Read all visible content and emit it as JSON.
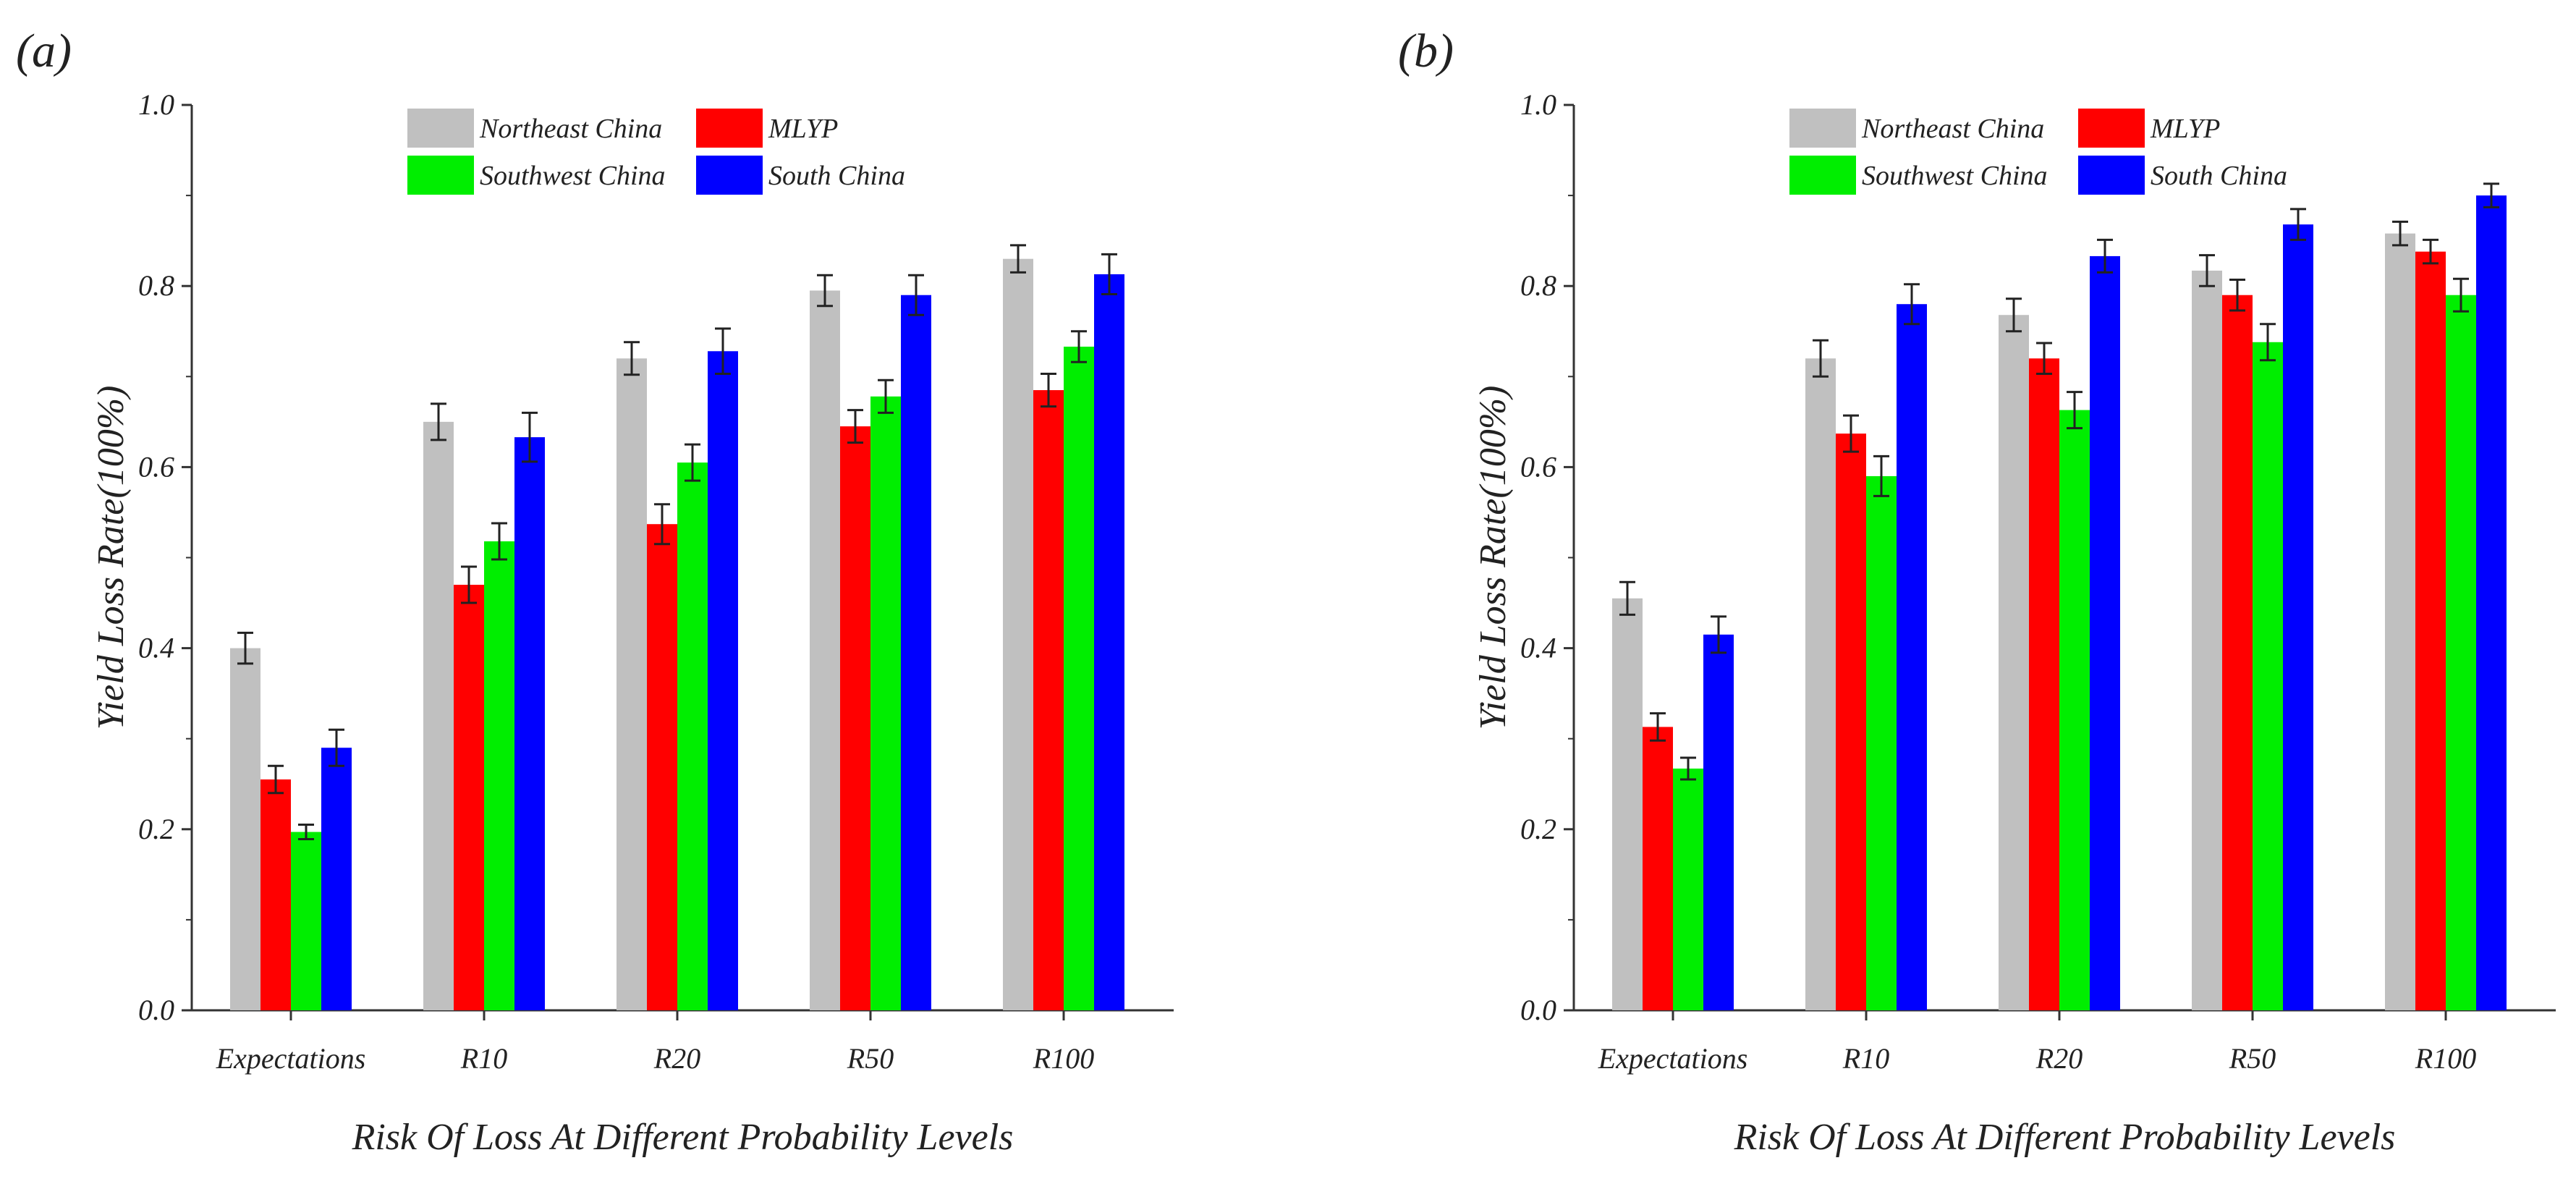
{
  "chart_data": [
    {
      "type": "bar",
      "panel_label": "(a)",
      "categories": [
        "Expectations",
        "R10",
        "R20",
        "R50",
        "R100"
      ],
      "series": [
        {
          "name": "Northeast China",
          "color": "#c0c0c0",
          "values": [
            0.4,
            0.65,
            0.72,
            0.795,
            0.83
          ],
          "errors": [
            0.017,
            0.02,
            0.018,
            0.017,
            0.015
          ]
        },
        {
          "name": "MLYP",
          "color": "#ff0000",
          "values": [
            0.255,
            0.47,
            0.537,
            0.645,
            0.685
          ],
          "errors": [
            0.015,
            0.02,
            0.022,
            0.018,
            0.018
          ]
        },
        {
          "name": "Southwest China",
          "color": "#00ee00",
          "values": [
            0.197,
            0.518,
            0.605,
            0.678,
            0.733
          ],
          "errors": [
            0.008,
            0.02,
            0.02,
            0.018,
            0.017
          ]
        },
        {
          "name": "South China",
          "color": "#0000ff",
          "values": [
            0.29,
            0.633,
            0.728,
            0.79,
            0.813
          ],
          "errors": [
            0.02,
            0.027,
            0.025,
            0.022,
            0.022
          ]
        }
      ],
      "xlabel": "Risk Of Loss At Different Probability Levels",
      "ylabel": "Yield Loss Rate(100%)",
      "ylim": [
        0,
        1.0
      ],
      "yticks": [
        "0.0",
        "0.2",
        "0.4",
        "0.6",
        "0.8",
        "1.0"
      ],
      "legend_position": "top-left"
    },
    {
      "type": "bar",
      "panel_label": "(b)",
      "categories": [
        "Expectations",
        "R10",
        "R20",
        "R50",
        "R100"
      ],
      "series": [
        {
          "name": "Northeast China",
          "color": "#c0c0c0",
          "values": [
            0.455,
            0.72,
            0.768,
            0.817,
            0.858
          ],
          "errors": [
            0.018,
            0.02,
            0.018,
            0.017,
            0.013
          ]
        },
        {
          "name": "MLYP",
          "color": "#ff0000",
          "values": [
            0.313,
            0.637,
            0.72,
            0.79,
            0.838
          ],
          "errors": [
            0.015,
            0.02,
            0.017,
            0.017,
            0.013
          ]
        },
        {
          "name": "Southwest China",
          "color": "#00ee00",
          "values": [
            0.267,
            0.59,
            0.663,
            0.738,
            0.79
          ],
          "errors": [
            0.012,
            0.022,
            0.02,
            0.02,
            0.018
          ]
        },
        {
          "name": "South China",
          "color": "#0000ff",
          "values": [
            0.415,
            0.78,
            0.833,
            0.868,
            0.9
          ],
          "errors": [
            0.02,
            0.022,
            0.018,
            0.017,
            0.013
          ]
        }
      ],
      "xlabel": "Risk Of Loss At Different Probability Levels",
      "ylabel": "Yield Loss Rate(100%)",
      "ylim": [
        0,
        1.0
      ],
      "yticks": [
        "0.0",
        "0.2",
        "0.4",
        "0.6",
        "0.8",
        "1.0"
      ],
      "legend_position": "top-left"
    }
  ]
}
